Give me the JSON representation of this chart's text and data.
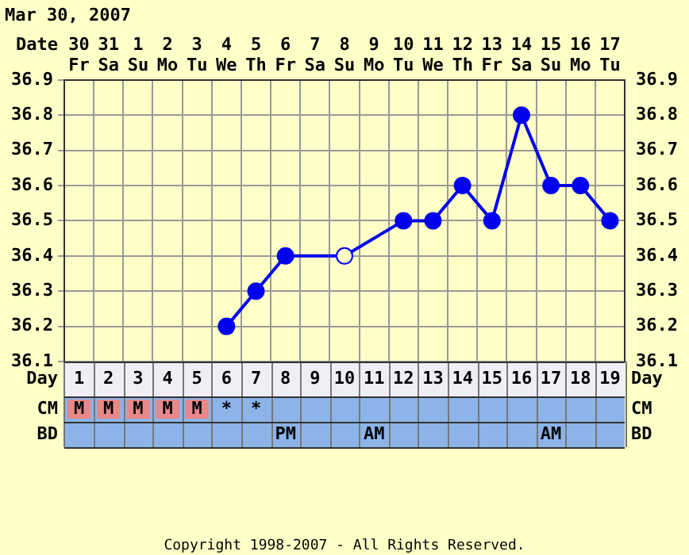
{
  "chart_data": {
    "type": "line",
    "title": "Mar 30, 2007",
    "xlabel": "Date",
    "categories": [
      "30 Fr",
      "31 Sa",
      "1 Su",
      "2 Mo",
      "3 Tu",
      "4 We",
      "5 Th",
      "6 Fr",
      "7 Sa",
      "8 Su",
      "9 Mo",
      "10 Tu",
      "11 We",
      "12 Th",
      "13 Fr",
      "14 Sa",
      "15 Su",
      "16 Mo",
      "17 Tu"
    ],
    "series": [
      {
        "color": "#0000ee",
        "values": [
          null,
          null,
          null,
          null,
          null,
          36.2,
          36.3,
          36.4,
          null,
          36.4,
          null,
          36.5,
          36.5,
          36.6,
          36.5,
          36.8,
          36.6,
          36.6,
          36.5
        ]
      }
    ],
    "ylim": [
      36.1,
      36.9
    ],
    "yticks": [
      36.1,
      36.2,
      36.3,
      36.4,
      36.5,
      36.6,
      36.7,
      36.8,
      36.9
    ],
    "y2lim": [
      36.1,
      36.9
    ],
    "y2ticks": [
      36.1,
      36.2,
      36.3,
      36.4,
      36.5,
      36.6,
      36.7,
      36.8,
      36.9
    ],
    "grid": true,
    "legend": false,
    "marker": "circle",
    "line_style": "solid",
    "annotations": [
      "Day",
      "Day",
      "CM",
      "CM",
      "BD",
      "BD",
      "1",
      "2",
      "3",
      "4",
      "5",
      "6",
      "7",
      "8",
      "9",
      "10",
      "11",
      "12",
      "13",
      "14",
      "15",
      "16",
      "17",
      "18",
      "19",
      "M",
      "M",
      "M",
      "M",
      "M",
      "*",
      "*",
      "PM",
      "AM",
      "AM",
      "Copyright 1998-2007 - All Rights Reserved."
    ]
  }
}
